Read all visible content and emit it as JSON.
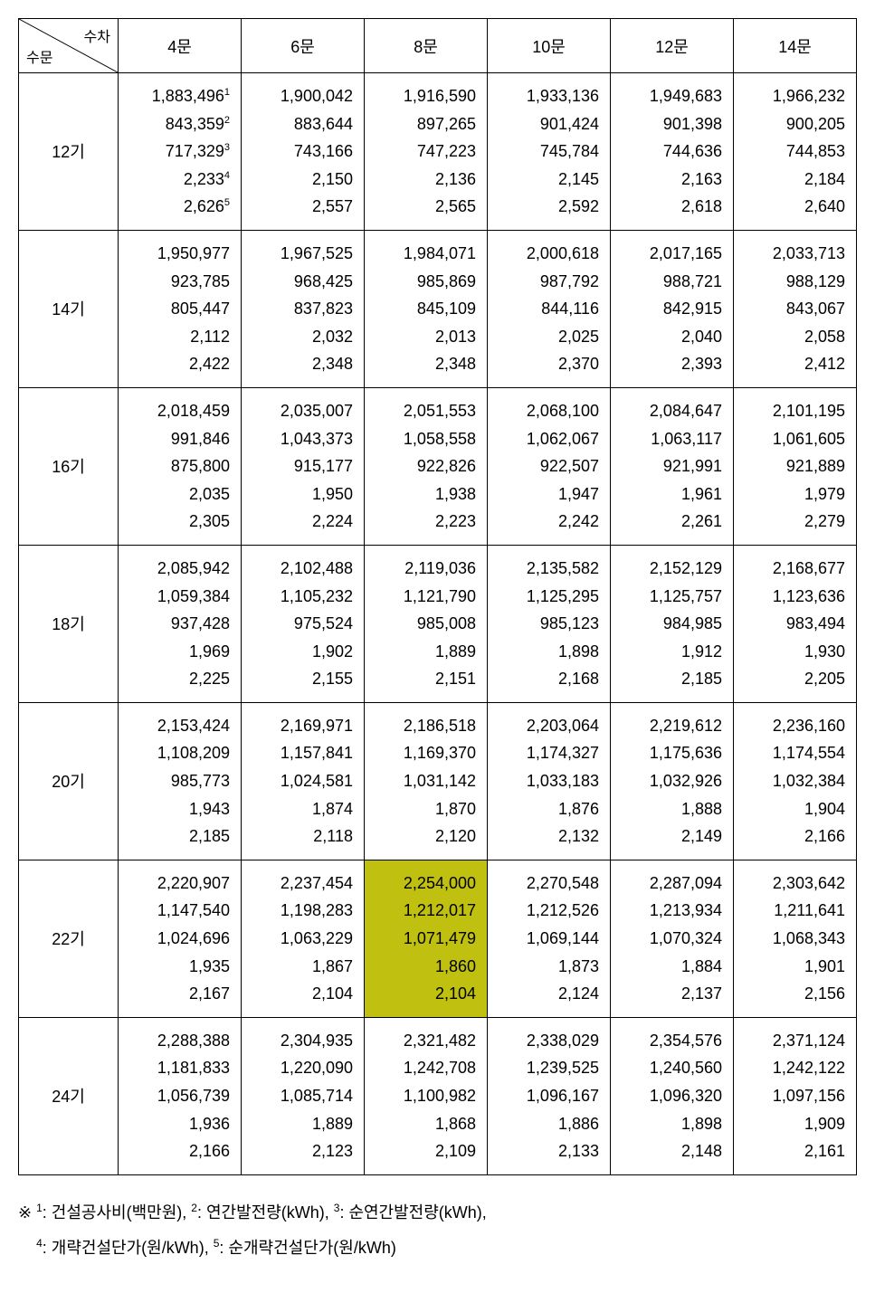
{
  "header": {
    "diagonal_top": "수차",
    "diagonal_bottom": "수문",
    "columns": [
      "4문",
      "6문",
      "8문",
      "10문",
      "12문",
      "14문"
    ]
  },
  "highlight": {
    "row": 5,
    "col": 2,
    "color": "#c0c010"
  },
  "rows": [
    {
      "label": "12기",
      "cells": [
        {
          "values": [
            "1,883,496",
            "843,359",
            "717,329",
            "2,233",
            "2,626"
          ],
          "supers": [
            "1",
            "2",
            "3",
            "4",
            "5"
          ]
        },
        {
          "values": [
            "1,900,042",
            "883,644",
            "743,166",
            "2,150",
            "2,557"
          ]
        },
        {
          "values": [
            "1,916,590",
            "897,265",
            "747,223",
            "2,136",
            "2,565"
          ]
        },
        {
          "values": [
            "1,933,136",
            "901,424",
            "745,784",
            "2,145",
            "2,592"
          ]
        },
        {
          "values": [
            "1,949,683",
            "901,398",
            "744,636",
            "2,163",
            "2,618"
          ]
        },
        {
          "values": [
            "1,966,232",
            "900,205",
            "744,853",
            "2,184",
            "2,640"
          ]
        }
      ]
    },
    {
      "label": "14기",
      "cells": [
        {
          "values": [
            "1,950,977",
            "923,785",
            "805,447",
            "2,112",
            "2,422"
          ]
        },
        {
          "values": [
            "1,967,525",
            "968,425",
            "837,823",
            "2,032",
            "2,348"
          ]
        },
        {
          "values": [
            "1,984,071",
            "985,869",
            "845,109",
            "2,013",
            "2,348"
          ]
        },
        {
          "values": [
            "2,000,618",
            "987,792",
            "844,116",
            "2,025",
            "2,370"
          ]
        },
        {
          "values": [
            "2,017,165",
            "988,721",
            "842,915",
            "2,040",
            "2,393"
          ]
        },
        {
          "values": [
            "2,033,713",
            "988,129",
            "843,067",
            "2,058",
            "2,412"
          ]
        }
      ]
    },
    {
      "label": "16기",
      "cells": [
        {
          "values": [
            "2,018,459",
            "991,846",
            "875,800",
            "2,035",
            "2,305"
          ]
        },
        {
          "values": [
            "2,035,007",
            "1,043,373",
            "915,177",
            "1,950",
            "2,224"
          ]
        },
        {
          "values": [
            "2,051,553",
            "1,058,558",
            "922,826",
            "1,938",
            "2,223"
          ]
        },
        {
          "values": [
            "2,068,100",
            "1,062,067",
            "922,507",
            "1,947",
            "2,242"
          ]
        },
        {
          "values": [
            "2,084,647",
            "1,063,117",
            "921,991",
            "1,961",
            "2,261"
          ]
        },
        {
          "values": [
            "2,101,195",
            "1,061,605",
            "921,889",
            "1,979",
            "2,279"
          ]
        }
      ]
    },
    {
      "label": "18기",
      "cells": [
        {
          "values": [
            "2,085,942",
            "1,059,384",
            "937,428",
            "1,969",
            "2,225"
          ]
        },
        {
          "values": [
            "2,102,488",
            "1,105,232",
            "975,524",
            "1,902",
            "2,155"
          ]
        },
        {
          "values": [
            "2,119,036",
            "1,121,790",
            "985,008",
            "1,889",
            "2,151"
          ]
        },
        {
          "values": [
            "2,135,582",
            "1,125,295",
            "985,123",
            "1,898",
            "2,168"
          ]
        },
        {
          "values": [
            "2,152,129",
            "1,125,757",
            "984,985",
            "1,912",
            "2,185"
          ]
        },
        {
          "values": [
            "2,168,677",
            "1,123,636",
            "983,494",
            "1,930",
            "2,205"
          ]
        }
      ]
    },
    {
      "label": "20기",
      "cells": [
        {
          "values": [
            "2,153,424",
            "1,108,209",
            "985,773",
            "1,943",
            "2,185"
          ]
        },
        {
          "values": [
            "2,169,971",
            "1,157,841",
            "1,024,581",
            "1,874",
            "2,118"
          ]
        },
        {
          "values": [
            "2,186,518",
            "1,169,370",
            "1,031,142",
            "1,870",
            "2,120"
          ]
        },
        {
          "values": [
            "2,203,064",
            "1,174,327",
            "1,033,183",
            "1,876",
            "2,132"
          ]
        },
        {
          "values": [
            "2,219,612",
            "1,175,636",
            "1,032,926",
            "1,888",
            "2,149"
          ]
        },
        {
          "values": [
            "2,236,160",
            "1,174,554",
            "1,032,384",
            "1,904",
            "2,166"
          ]
        }
      ]
    },
    {
      "label": "22기",
      "cells": [
        {
          "values": [
            "2,220,907",
            "1,147,540",
            "1,024,696",
            "1,935",
            "2,167"
          ]
        },
        {
          "values": [
            "2,237,454",
            "1,198,283",
            "1,063,229",
            "1,867",
            "2,104"
          ]
        },
        {
          "values": [
            "2,254,000",
            "1,212,017",
            "1,071,479",
            "1,860",
            "2,104"
          ]
        },
        {
          "values": [
            "2,270,548",
            "1,212,526",
            "1,069,144",
            "1,873",
            "2,124"
          ]
        },
        {
          "values": [
            "2,287,094",
            "1,213,934",
            "1,070,324",
            "1,884",
            "2,137"
          ]
        },
        {
          "values": [
            "2,303,642",
            "1,211,641",
            "1,068,343",
            "1,901",
            "2,156"
          ]
        }
      ]
    },
    {
      "label": "24기",
      "cells": [
        {
          "values": [
            "2,288,388",
            "1,181,833",
            "1,056,739",
            "1,936",
            "2,166"
          ]
        },
        {
          "values": [
            "2,304,935",
            "1,220,090",
            "1,085,714",
            "1,889",
            "2,123"
          ]
        },
        {
          "values": [
            "2,321,482",
            "1,242,708",
            "1,100,982",
            "1,868",
            "2,109"
          ]
        },
        {
          "values": [
            "2,338,029",
            "1,239,525",
            "1,096,167",
            "1,886",
            "2,133"
          ]
        },
        {
          "values": [
            "2,354,576",
            "1,240,560",
            "1,096,320",
            "1,898",
            "2,148"
          ]
        },
        {
          "values": [
            "2,371,124",
            "1,242,122",
            "1,097,156",
            "1,909",
            "2,161"
          ]
        }
      ]
    }
  ],
  "footnotes": {
    "prefix": "※ ",
    "items": [
      {
        "num": "1",
        "text": ": 건설공사비(백만원), "
      },
      {
        "num": "2",
        "text": ": 연간발전량(kWh), "
      },
      {
        "num": "3",
        "text": ": 순연간발전량(kWh),"
      },
      {
        "num": "4",
        "text": ": 개략건설단가(원/kWh), "
      },
      {
        "num": "5",
        "text": ": 순개략건설단가(원/kWh)"
      }
    ]
  }
}
